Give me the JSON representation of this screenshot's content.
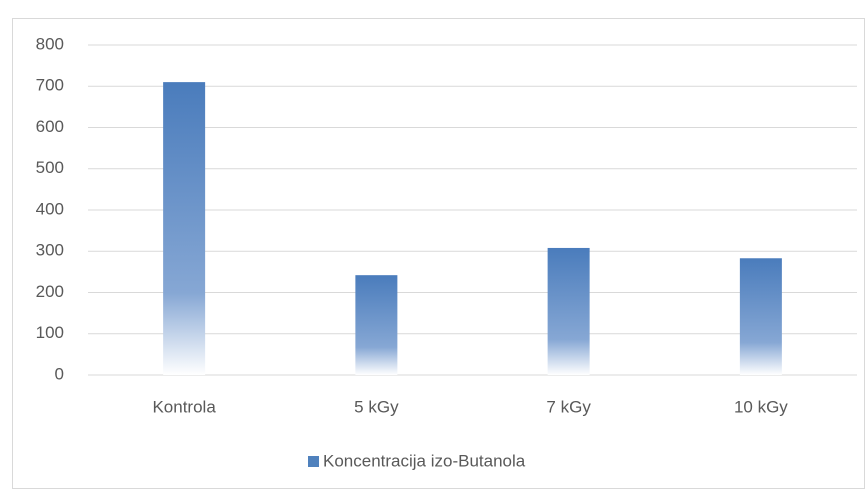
{
  "chart_data": {
    "type": "bar",
    "categories": [
      "Kontrola",
      "5 kGy",
      "7 kGy",
      "10 kGy"
    ],
    "series": [
      {
        "name": "Koncentracija izo-Butanola",
        "color": "#4f81bd",
        "values": [
          710,
          242,
          308,
          283
        ]
      }
    ],
    "ylim": [
      0,
      800
    ],
    "yticks": [
      0,
      100,
      200,
      300,
      400,
      500,
      600,
      700,
      800
    ],
    "grid": true,
    "legend": "bottom"
  }
}
